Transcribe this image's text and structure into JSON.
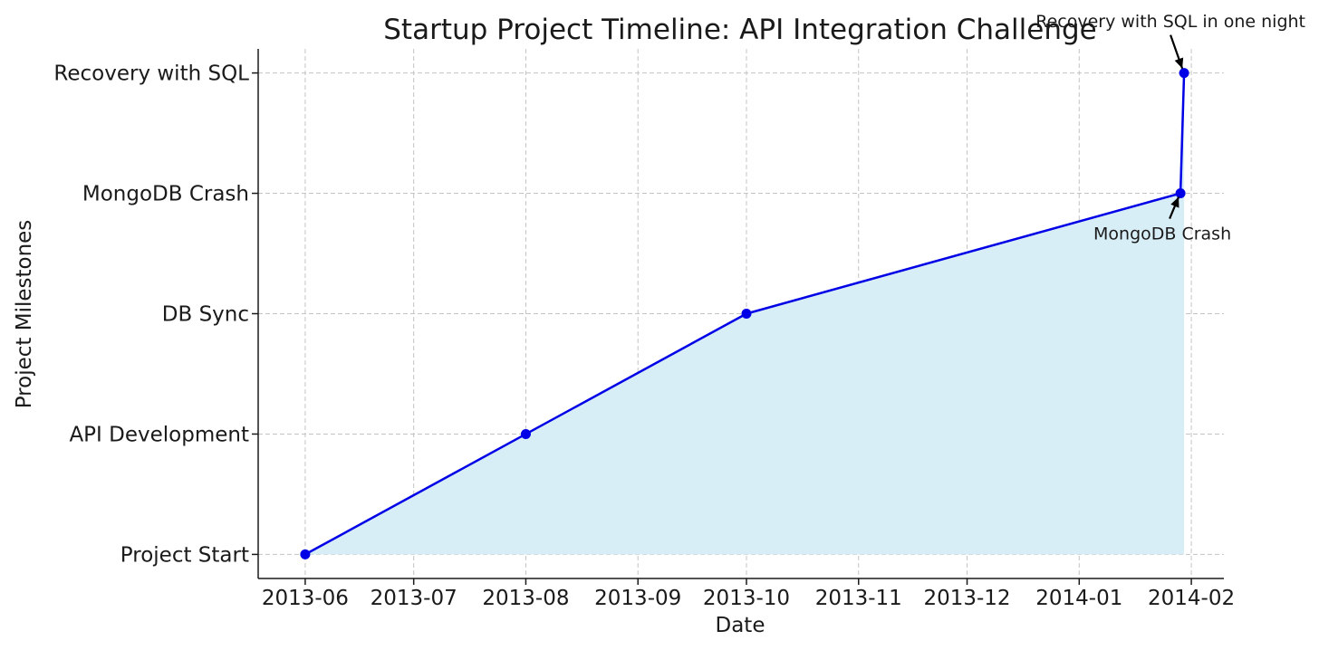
{
  "chart_data": {
    "type": "area",
    "title": "Startup Project Timeline: API Integration Challenge",
    "xlabel": "Date",
    "ylabel": "Project Milestones",
    "x_ticks": [
      "2013-06",
      "2013-07",
      "2013-08",
      "2013-09",
      "2013-10",
      "2013-11",
      "2013-12",
      "2014-01",
      "2014-02"
    ],
    "y_categories": [
      "Project Start",
      "API Development",
      "DB Sync",
      "MongoDB Crash",
      "Recovery with SQL"
    ],
    "xlim": [
      "2013-05-19",
      "2014-02-10"
    ],
    "ylim": [
      -0.2,
      4.2
    ],
    "grid": true,
    "series": [
      {
        "points": [
          {
            "x": "2013-06-01",
            "y": "Project Start"
          },
          {
            "x": "2013-08-01",
            "y": "API Development"
          },
          {
            "x": "2013-10-01",
            "y": "DB Sync"
          },
          {
            "x": "2014-01-29",
            "y": "MongoDB Crash"
          },
          {
            "x": "2014-01-30",
            "y": "Recovery with SQL"
          }
        ]
      }
    ],
    "annotations": [
      {
        "text": "MongoDB Crash",
        "x": "2014-01-29",
        "y": "MongoDB Crash"
      },
      {
        "text": "Recovery with SQL in one night",
        "x": "2014-01-30",
        "y": "Recovery with SQL"
      }
    ],
    "colors": {
      "line": "#0000e6",
      "fill": "#d8eef7",
      "grid": "#c4c4c4",
      "axis": "#1a1a1a"
    }
  }
}
